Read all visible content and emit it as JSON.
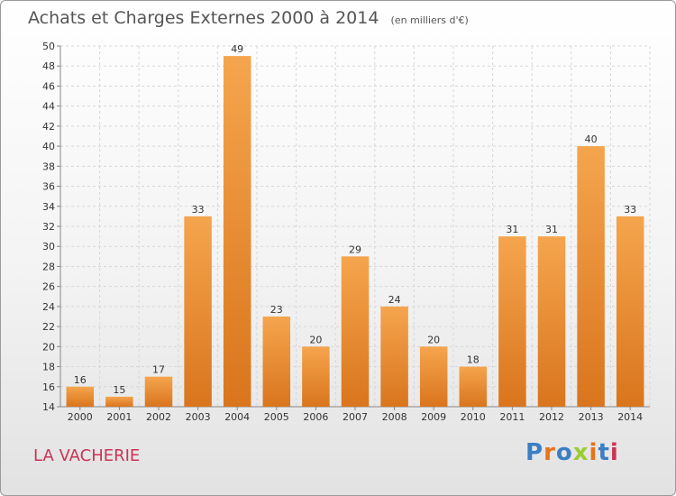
{
  "header": {
    "title": "Achats et Charges Externes 2000 à 2014",
    "subtitle": "(en milliers d'€)"
  },
  "footer": {
    "place": "LA VACHERIE",
    "brand": "Proxiti",
    "brand_colors": [
      "#3a7fc4",
      "#e8731a",
      "#3a7fc4",
      "#9acd32",
      "#e8731a",
      "#3a7fc4",
      "#cc3355"
    ]
  },
  "chart_data": {
    "type": "bar",
    "title": "Achats et Charges Externes 2000 à 2014",
    "subtitle": "(en milliers d'€)",
    "categories": [
      "2000",
      "2001",
      "2002",
      "2003",
      "2004",
      "2005",
      "2006",
      "2007",
      "2008",
      "2009",
      "2010",
      "2011",
      "2012",
      "2013",
      "2014"
    ],
    "values": [
      16,
      15,
      17,
      33,
      49,
      23,
      20,
      29,
      24,
      20,
      18,
      31,
      31,
      40,
      33
    ],
    "ylim": [
      14,
      50
    ],
    "ytick_step": 2,
    "grid": true,
    "bar_color_top": "#f5a54e",
    "bar_color_bottom": "#d9751d",
    "data_labels": true
  }
}
